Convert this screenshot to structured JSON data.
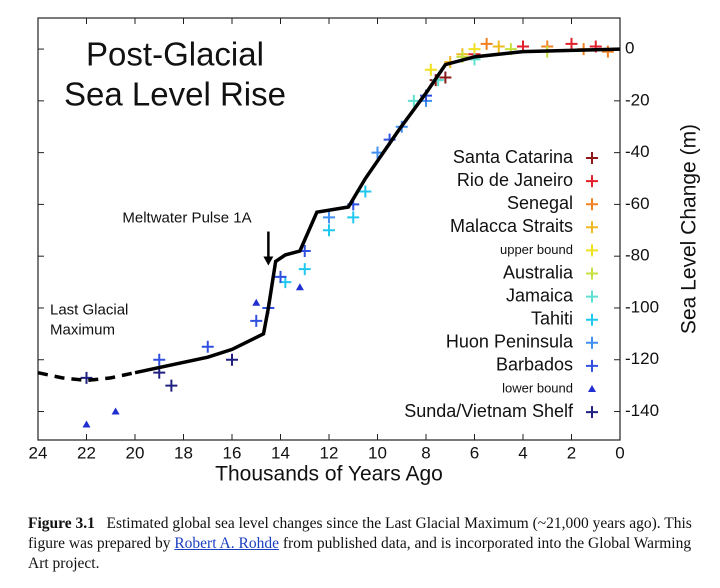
{
  "chart_data": {
    "type": "scatter",
    "title": [
      "Post-Glacial",
      "Sea Level Rise"
    ],
    "xlabel": "Thousands of Years Ago",
    "ylabel": "Sea Level Change (m)",
    "xlim": [
      24,
      0
    ],
    "ylim": [
      -151,
      12
    ],
    "xticks": [
      24,
      22,
      20,
      18,
      16,
      14,
      12,
      10,
      8,
      6,
      4,
      2,
      0
    ],
    "yticks": [
      0,
      -20,
      -40,
      -60,
      -80,
      -100,
      -120,
      -140
    ],
    "annotations": [
      {
        "text": "Meltwater Pulse 1A",
        "x": 14.5,
        "y": -84
      },
      {
        "lines": [
          "Last Glacial",
          "Maximum"
        ],
        "x": 22,
        "y": -101
      }
    ],
    "lines": [
      {
        "color": "#000000",
        "style": "solid",
        "x": [
          20,
          17,
          16,
          14.7,
          14.5,
          14.2,
          13.8,
          13.2,
          12.5,
          11.2,
          10.5,
          9.1,
          8,
          7.2,
          6,
          4,
          2,
          0
        ],
        "values": [
          -125,
          -119,
          -116,
          -110,
          -100,
          -82,
          -79.5,
          -78,
          -63,
          -61,
          -50,
          -31,
          -17,
          -6,
          -3,
          -1,
          -0.5,
          0
        ]
      },
      {
        "color": "#000000",
        "style": "dashed",
        "x": [
          24,
          23,
          22,
          21,
          20
        ],
        "values": [
          -125,
          -127,
          -128,
          -127,
          -125
        ]
      }
    ],
    "series": [
      {
        "name": "Santa Catarina",
        "color": "#8b1a1a",
        "marker": "cross",
        "x": [
          7.6,
          7.2
        ],
        "values": [
          -12,
          -11
        ]
      },
      {
        "name": "Rio de Janeiro",
        "color": "#e0202a",
        "marker": "cross",
        "x": [
          6,
          4,
          2,
          1
        ],
        "values": [
          -2,
          1,
          2,
          1
        ]
      },
      {
        "name": "Senegal",
        "color": "#f08020",
        "marker": "cross",
        "x": [
          5.5,
          3,
          1.5,
          0.5
        ],
        "values": [
          2,
          1,
          0,
          -1
        ]
      },
      {
        "name": "Malacca Straits",
        "color": "#f0b820",
        "marker": "cross",
        "x": [
          7,
          6.5,
          5
        ],
        "values": [
          -5,
          -2,
          1
        ]
      },
      {
        "name": "upper bound",
        "color": "#f0e020",
        "marker": "cross",
        "x": [
          7.8,
          6
        ],
        "values": [
          -8,
          0
        ]
      },
      {
        "name": "Australia",
        "color": "#c8e040",
        "marker": "cross",
        "x": [
          6.5,
          4.5,
          3
        ],
        "values": [
          -3,
          0,
          -1
        ]
      },
      {
        "name": "Jamaica",
        "color": "#60e0d0",
        "marker": "cross",
        "x": [
          8.5,
          7.5,
          6
        ],
        "values": [
          -20,
          -12,
          -4
        ]
      },
      {
        "name": "Tahiti",
        "color": "#20c8f0",
        "marker": "cross",
        "x": [
          13.8,
          13,
          12,
          11,
          10.5
        ],
        "values": [
          -90,
          -85,
          -70,
          -65,
          -55
        ]
      },
      {
        "name": "Huon Peninsula",
        "color": "#4090f0",
        "marker": "cross",
        "x": [
          12,
          10,
          9,
          8
        ],
        "values": [
          -65,
          -40,
          -30,
          -20
        ]
      },
      {
        "name": "Barbados",
        "color": "#3050e0",
        "marker": "cross",
        "x": [
          19,
          17,
          15,
          14.5,
          14,
          13,
          11,
          9.5,
          8
        ],
        "values": [
          -120,
          -115,
          -105,
          -100,
          -88,
          -78,
          -60,
          -35,
          -18
        ]
      },
      {
        "name": "lower bound",
        "color": "#2030d0",
        "marker": "triangle",
        "x": [
          22,
          20.8,
          15,
          13.2
        ],
        "values": [
          -145,
          -140,
          -98,
          -92
        ]
      },
      {
        "name": "Sunda/Vietnam Shelf",
        "color": "#202080",
        "marker": "cross",
        "x": [
          22,
          19,
          18.5,
          16
        ],
        "values": [
          -127,
          -125,
          -130,
          -120
        ]
      }
    ]
  },
  "caption": {
    "label": "Figure 3.1",
    "text": "Estimated global sea level changes since the Last Glacial Maximum (~21,000 years ago).  This figure was prepared by",
    "link": "Robert A. Rohde",
    "text_after": "from published data, and is incorporated into the Global Warming Art project."
  }
}
